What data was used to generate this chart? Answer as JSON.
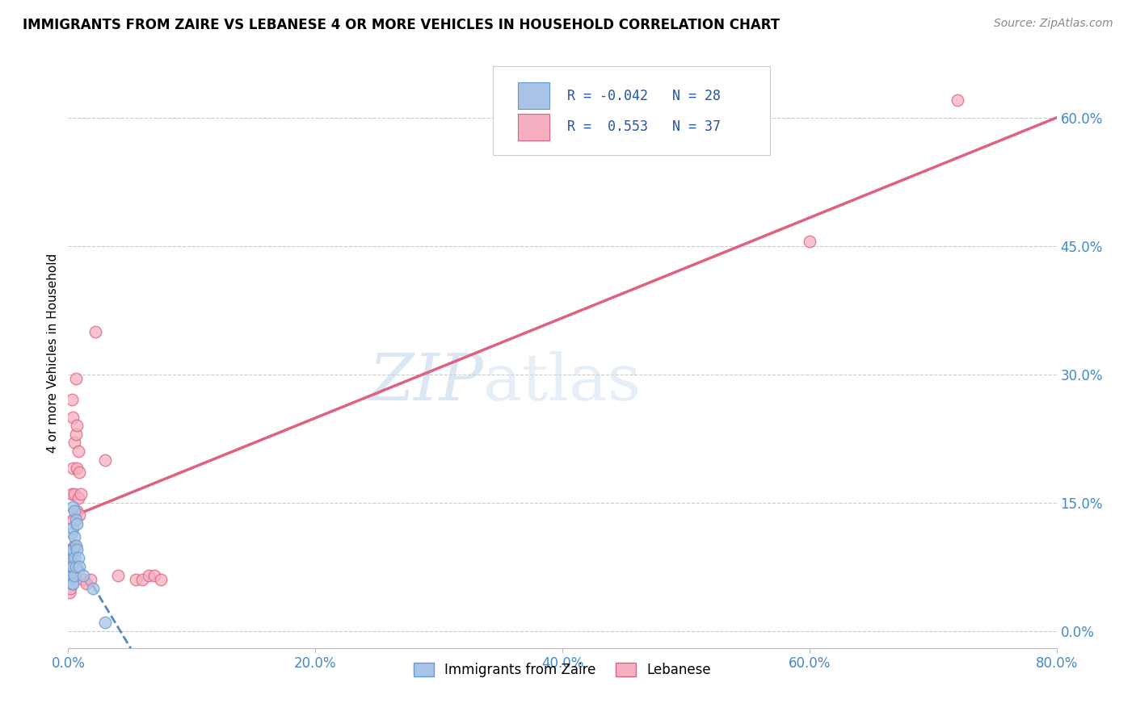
{
  "title": "IMMIGRANTS FROM ZAIRE VS LEBANESE 4 OR MORE VEHICLES IN HOUSEHOLD CORRELATION CHART",
  "source": "Source: ZipAtlas.com",
  "ylabel": "4 or more Vehicles in Household",
  "watermark_zip": "ZIP",
  "watermark_atlas": "atlas",
  "legend_label1": "Immigrants from Zaire",
  "legend_label2": "Lebanese",
  "r1": -0.042,
  "n1": 28,
  "r2": 0.553,
  "n2": 37,
  "xlim": [
    0.0,
    0.8
  ],
  "ylim": [
    -0.02,
    0.67
  ],
  "xticks": [
    0.0,
    0.2,
    0.4,
    0.6,
    0.8
  ],
  "yticks": [
    0.0,
    0.15,
    0.3,
    0.45,
    0.6
  ],
  "color_zaire_fill": "#aac4e8",
  "color_zaire_edge": "#6699cc",
  "color_lebanese_fill": "#f5afc0",
  "color_lebanese_edge": "#e06080",
  "color_zaire_line": "#5588bb",
  "color_lebanese_line": "#e06080",
  "background_color": "#ffffff",
  "zaire_x": [
    0.001,
    0.001,
    0.002,
    0.002,
    0.002,
    0.003,
    0.003,
    0.003,
    0.003,
    0.004,
    0.004,
    0.004,
    0.004,
    0.004,
    0.005,
    0.005,
    0.005,
    0.005,
    0.006,
    0.006,
    0.006,
    0.007,
    0.007,
    0.008,
    0.009,
    0.012,
    0.02,
    0.03
  ],
  "zaire_y": [
    0.075,
    0.06,
    0.095,
    0.08,
    0.065,
    0.115,
    0.095,
    0.075,
    0.055,
    0.145,
    0.12,
    0.095,
    0.075,
    0.055,
    0.14,
    0.11,
    0.085,
    0.065,
    0.13,
    0.1,
    0.075,
    0.125,
    0.095,
    0.085,
    0.075,
    0.065,
    0.05,
    0.01
  ],
  "lebanese_x": [
    0.001,
    0.001,
    0.002,
    0.002,
    0.002,
    0.003,
    0.003,
    0.003,
    0.004,
    0.004,
    0.004,
    0.005,
    0.005,
    0.005,
    0.006,
    0.006,
    0.007,
    0.007,
    0.007,
    0.008,
    0.008,
    0.009,
    0.009,
    0.01,
    0.012,
    0.015,
    0.018,
    0.022,
    0.03,
    0.04,
    0.055,
    0.06,
    0.065,
    0.07,
    0.075,
    0.6,
    0.72
  ],
  "lebanese_y": [
    0.06,
    0.045,
    0.09,
    0.07,
    0.05,
    0.27,
    0.16,
    0.08,
    0.25,
    0.19,
    0.13,
    0.22,
    0.16,
    0.1,
    0.295,
    0.23,
    0.24,
    0.19,
    0.14,
    0.21,
    0.155,
    0.185,
    0.135,
    0.16,
    0.06,
    0.055,
    0.06,
    0.35,
    0.2,
    0.065,
    0.06,
    0.06,
    0.065,
    0.065,
    0.06,
    0.455,
    0.62
  ],
  "line_zaire_x0": 0.0,
  "line_zaire_x1": 0.8,
  "line_lebanese_x0": 0.0,
  "line_lebanese_x1": 0.8
}
